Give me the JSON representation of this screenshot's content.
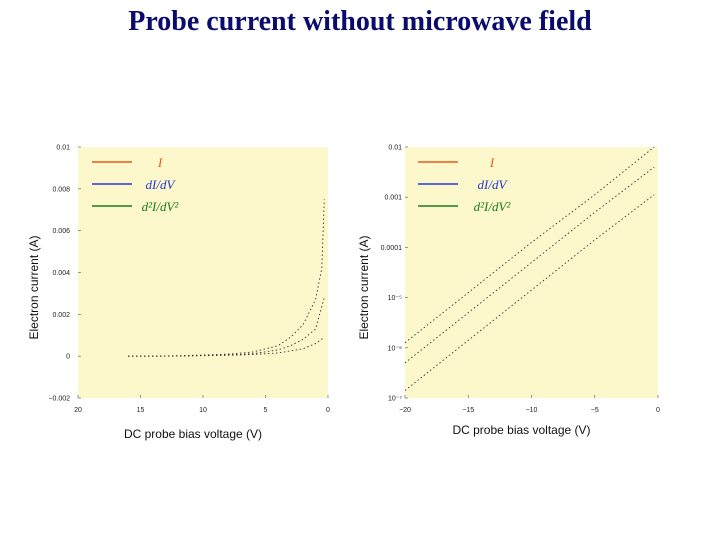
{
  "slide": {
    "title": "Probe current without microwave field"
  },
  "colors": {
    "plot_bg": "#fcf8cc",
    "I": "#e35a1e",
    "dIdV": "#2638c8",
    "d2Id2V": "#1d7a1d",
    "curve": "#333333"
  },
  "chart_data": [
    {
      "type": "line",
      "scale": "linear",
      "xlabel": "DC probe bias voltage (V)",
      "ylabel": "Electron current (A)",
      "xlim": [
        20,
        0
      ],
      "ylim": [
        -0.002,
        0.01
      ],
      "xticks": [
        {
          "v": 20,
          "label": "20"
        },
        {
          "v": 15,
          "label": "15"
        },
        {
          "v": 10,
          "label": "10"
        },
        {
          "v": 5,
          "label": "5"
        },
        {
          "v": 0,
          "label": "0"
        }
      ],
      "yticks": [
        {
          "v": 0.01,
          "label": "0.01"
        },
        {
          "v": 0.008,
          "label": "0.008"
        },
        {
          "v": 0.006,
          "label": "0.006"
        },
        {
          "v": 0.004,
          "label": "0.004"
        },
        {
          "v": 0.002,
          "label": "0.002"
        },
        {
          "v": 0,
          "label": "0"
        },
        {
          "v": -0.002,
          "label": "−0.002"
        }
      ],
      "legend": [
        "I",
        "dI/dV",
        "d2I/dV2"
      ],
      "legend_display": [
        "I",
        "dI/dV",
        "d²I/dV²"
      ],
      "series": [
        {
          "name": "I",
          "x": [
            16,
            14,
            12,
            10,
            8,
            6,
            4,
            3,
            2,
            1,
            0.5,
            0.3
          ],
          "y": [
            0,
            0,
            2e-05,
            5e-05,
            0.0001,
            0.0002,
            0.0005,
            0.0009,
            0.0015,
            0.0027,
            0.0042,
            0.0075
          ]
        },
        {
          "name": "dI/dV",
          "x": [
            16,
            14,
            12,
            10,
            8,
            6,
            4,
            3,
            2,
            1,
            0.3
          ],
          "y": [
            0,
            0,
            1e-05,
            3e-05,
            6e-05,
            0.00012,
            0.0003,
            0.0005,
            0.0008,
            0.0013,
            0.0028
          ]
        },
        {
          "name": "d2I/dV2",
          "x": [
            16,
            14,
            12,
            10,
            8,
            6,
            4,
            2,
            1,
            0.3
          ],
          "y": [
            0,
            0,
            5e-06,
            2e-05,
            4e-05,
            8e-05,
            0.00015,
            0.00035,
            0.0006,
            0.0009
          ]
        }
      ]
    },
    {
      "type": "line",
      "scale": "log",
      "xlabel": "DC probe bias voltage (V)",
      "ylabel": "Electron current (A)",
      "xlim": [
        -20,
        0
      ],
      "ylim_log10": [
        -7,
        -2
      ],
      "xticks": [
        {
          "v": -20,
          "label": "−20"
        },
        {
          "v": -15,
          "label": "−15"
        },
        {
          "v": -10,
          "label": "−10"
        },
        {
          "v": -5,
          "label": "−5"
        },
        {
          "v": 0,
          "label": "0"
        }
      ],
      "yticks": [
        {
          "e": -2,
          "label": "0.01"
        },
        {
          "e": -3,
          "label": "0.001"
        },
        {
          "e": -4,
          "label": "0.0001"
        },
        {
          "e": -5,
          "label": "10⁻⁵"
        },
        {
          "e": -6,
          "label": "10⁻⁶"
        },
        {
          "e": -7,
          "label": "10⁻⁷"
        }
      ],
      "legend": [
        "I",
        "dI/dV",
        "d2I/dV2"
      ],
      "legend_display": [
        "I",
        "dI/dV",
        "d²I/dV²"
      ],
      "series": [
        {
          "name": "I",
          "x": [
            -20,
            -15,
            -10,
            -5,
            -0.3
          ],
          "log10_y": [
            -5.9,
            -4.9,
            -3.9,
            -2.95,
            -2.0
          ]
        },
        {
          "name": "dI/dV",
          "x": [
            -20,
            -15,
            -10,
            -5,
            -0.3
          ],
          "log10_y": [
            -6.3,
            -5.3,
            -4.3,
            -3.3,
            -2.4
          ]
        },
        {
          "name": "d2I/dV2",
          "x": [
            -20,
            -15,
            -10,
            -5,
            -0.3
          ],
          "log10_y": [
            -6.85,
            -5.85,
            -4.85,
            -3.85,
            -2.95
          ]
        }
      ]
    }
  ]
}
